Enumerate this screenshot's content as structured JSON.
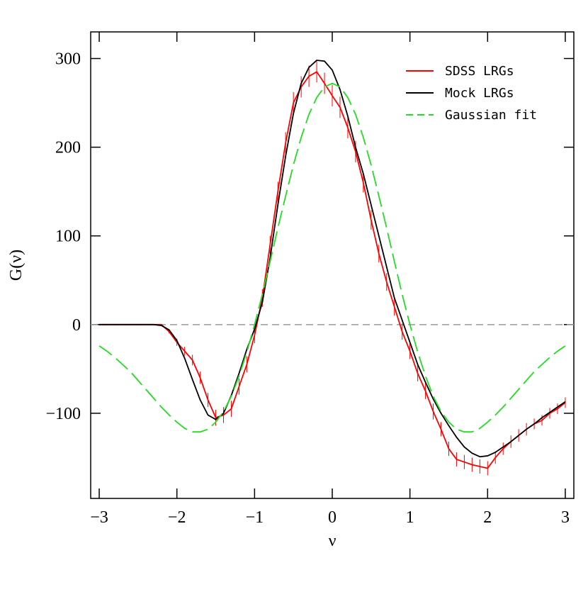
{
  "chart_data": {
    "type": "line",
    "xlabel": "ν",
    "ylabel": "G(ν)",
    "xlim": [
      -3.11,
      3.11
    ],
    "ylim": [
      -196,
      330
    ],
    "xticks": [
      {
        "value": -3,
        "label": "−3"
      },
      {
        "value": -2,
        "label": "−2"
      },
      {
        "value": -1,
        "label": "−1"
      },
      0,
      1,
      2,
      3
    ],
    "yticks": [
      {
        "value": -100,
        "label": "−100"
      },
      0,
      100,
      200,
      300
    ],
    "hline": 0,
    "legend": "upper right",
    "x": [
      -3.0,
      -2.9,
      -2.8,
      -2.7,
      -2.6,
      -2.5,
      -2.4,
      -2.3,
      -2.2,
      -2.1,
      -2.0,
      -1.9,
      -1.8,
      -1.7,
      -1.6,
      -1.5,
      -1.4,
      -1.3,
      -1.2,
      -1.1,
      -1.0,
      -0.9,
      -0.8,
      -0.7,
      -0.6,
      -0.5,
      -0.4,
      -0.3,
      -0.2,
      -0.1,
      0.0,
      0.1,
      0.2,
      0.3,
      0.4,
      0.5,
      0.6,
      0.7,
      0.8,
      0.9,
      1.0,
      1.1,
      1.2,
      1.3,
      1.4,
      1.5,
      1.6,
      1.7,
      1.8,
      1.9,
      2.0,
      2.1,
      2.2,
      2.3,
      2.4,
      2.5,
      2.6,
      2.7,
      2.8,
      2.9,
      3.0
    ],
    "series": [
      {
        "name": "SDSS LRGs",
        "color": "#ff0000",
        "style": "solid",
        "values": [
          0,
          0,
          0,
          0,
          0,
          0,
          0,
          0,
          0,
          -8,
          -20,
          -30,
          -40,
          -60,
          -85,
          -105,
          -102,
          -95,
          -70,
          -45,
          -12,
          30,
          90,
          150,
          205,
          250,
          268,
          280,
          285,
          272,
          258,
          245,
          222,
          195,
          160,
          118,
          80,
          48,
          20,
          -8,
          -30,
          -55,
          -75,
          -98,
          -118,
          -140,
          -152,
          -155,
          -158,
          -160,
          -162,
          -150,
          -140,
          -132,
          -125,
          -118,
          -112,
          -108,
          -100,
          -95,
          -88
        ],
        "errors": [
          0,
          0,
          0,
          0,
          0,
          0,
          0,
          0,
          0,
          2,
          4,
          5,
          6,
          7,
          8,
          9,
          9,
          9,
          9,
          9,
          9,
          10,
          10,
          11,
          12,
          12,
          12,
          12,
          12,
          12,
          12,
          12,
          12,
          12,
          11,
          11,
          10,
          10,
          10,
          9,
          9,
          9,
          9,
          9,
          8,
          8,
          8,
          8,
          8,
          8,
          8,
          7,
          7,
          7,
          7,
          7,
          6,
          6,
          6,
          6,
          6
        ]
      },
      {
        "name": "Mock LRGs",
        "color": "#000000",
        "style": "solid",
        "values": [
          0,
          0,
          0,
          0,
          0,
          0,
          0,
          0,
          -1,
          -6,
          -18,
          -38,
          -62,
          -85,
          -102,
          -107,
          -100,
          -80,
          -55,
          -28,
          -5,
          25,
          75,
          135,
          190,
          238,
          272,
          290,
          298,
          297,
          287,
          265,
          235,
          200,
          170,
          135,
          100,
          65,
          30,
          5,
          -20,
          -45,
          -65,
          -84,
          -100,
          -114,
          -127,
          -138,
          -145,
          -149,
          -148,
          -144,
          -138,
          -132,
          -125,
          -118,
          -112,
          -105,
          -99,
          -93,
          -87
        ]
      },
      {
        "name": "Gaussian fit",
        "color": "#22dd22",
        "style": "dashed",
        "values": [
          -24,
          -30,
          -37,
          -45,
          -53,
          -63,
          -73,
          -83,
          -93,
          -102,
          -110,
          -117,
          -121,
          -121,
          -118,
          -110,
          -98,
          -81,
          -58,
          -31,
          0,
          34,
          71,
          109,
          145,
          180,
          211,
          237,
          256,
          268,
          272,
          268,
          256,
          237,
          211,
          180,
          145,
          109,
          71,
          34,
          0,
          -31,
          -58,
          -81,
          -98,
          -110,
          -118,
          -121,
          -121,
          -117,
          -110,
          -102,
          -93,
          -83,
          -73,
          -63,
          -53,
          -45,
          -37,
          -30,
          -24
        ]
      }
    ]
  }
}
